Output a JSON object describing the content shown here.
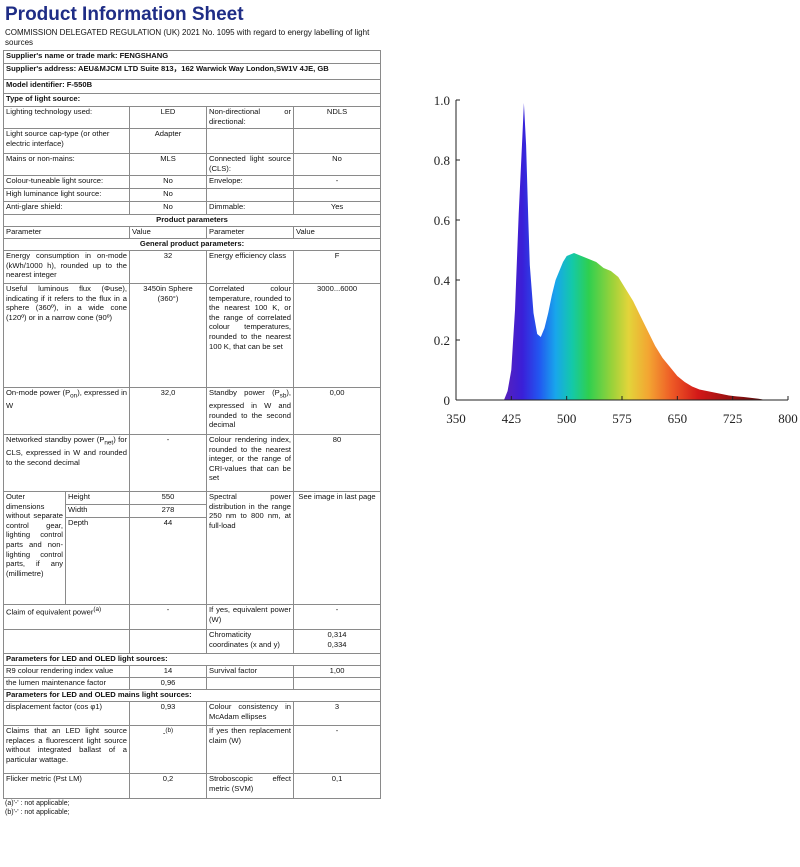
{
  "title": "Product Information Sheet",
  "regulation": "COMMISSION DELEGATED REGULATION (UK) 2021 No. 1095 with regard to energy labelling of light sources",
  "supplier_name": "Supplier's name or trade mark:  FENGSHANG",
  "supplier_address": "Supplier's address:  AEU&MJCM LTD  Suite 813，162 Warwick Way London,SW1V 4JE, GB",
  "model": "Model identifier: F-550B",
  "type_heading": "Type of light source:",
  "lighting_tech_label": "Lighting technology used:",
  "lighting_tech_value": "LED",
  "nondir_label": "Non-directional or directional:",
  "nondir_value": "NDLS",
  "cap_label": "Light source cap-type (or other electric interface)",
  "cap_value": "Adapter",
  "mains_label": "Mains or non-mains:",
  "mains_value": "MLS",
  "cls_label": "Connected light source (CLS):",
  "cls_value": "No",
  "colour_tune_label": "Colour-tuneable light source:",
  "colour_tune_value": "No",
  "envelope_label": "Envelope:",
  "envelope_value": "-",
  "high_lum_label": "High luminance light source:",
  "high_lum_value": "No",
  "antiglare_label": "Anti-glare shield:",
  "antiglare_value": "No",
  "dimmable_label": "Dimmable:",
  "dimmable_value": "Yes",
  "product_params_heading": "Product parameters",
  "col_parameter": "Parameter",
  "col_value": "Value",
  "general_params_heading": "General product parameters:",
  "energy_label": "Energy consumption in on-mode (kWh/1000 h), rounded up to the nearest integer",
  "energy_value": "32",
  "energy_class_label": "Energy efficiency class",
  "energy_class_value": "F",
  "flux_label": "Useful luminous flux (Φuse), indicating if it refers to the flux in a sphere (360º), in a wide cone (120º) or in a narrow cone (90º)",
  "flux_value": "3450in Sphere (360°)",
  "cct_label": "Correlated colour temperature, rounded to the nearest 100 K, or the range of correlated colour temperatures, rounded to the nearest 100 K, that can be set",
  "cct_value": "3000...6000",
  "onmode_label_a": "On-mode power (P",
  "onmode_sub": "on",
  "onmode_label_b": "), expressed in W",
  "onmode_value": "32,0",
  "standby_label_a": "Standby power (P",
  "standby_sub": "sb",
  "standby_label_b": "), expressed in W and rounded to the second decimal",
  "standby_value": "0,00",
  "networked_label_a": "Networked standby power (P",
  "networked_sub": "net",
  "networked_label_b": ") for CLS, expressed in W and rounded to the second decimal",
  "networked_value": "-",
  "cri_label": "Colour rendering index, rounded to the nearest integer, or the range of CRI-values that can be set",
  "cri_value": "80",
  "outer_label": "Outer dimensions without separate control gear, lighting control parts and non-lighting control parts, if any (millimetre)",
  "height_label": "Height",
  "height_value": "550",
  "width_label": "Width",
  "width_value": "278",
  "depth_label": "Depth",
  "depth_value": "44",
  "spd_label": "Spectral power distribution in the range 250 nm to 800 nm, at full-load",
  "spd_value": "See image in last page",
  "claim_label": "Claim of equivalent power",
  "claim_sup": "(a)",
  "claim_value": "-",
  "if_yes_label": "If yes, equivalent power (W)",
  "if_yes_value": "-",
  "chroma_label": "Chromaticity coordinates (x and y)",
  "chroma_x": "0,314",
  "chroma_y": "0,334",
  "led_heading": "Parameters for LED and OLED light sources:",
  "r9_label": "R9 colour rendering index value",
  "r9_value": "14",
  "survival_label": "Survival factor",
  "survival_value": "1,00",
  "lumen_maint_label": "the lumen maintenance factor",
  "lumen_maint_value": "0,96",
  "mains_heading": "Parameters for LED and OLED mains light sources:",
  "disp_label": "displacement factor (cos φ1)",
  "disp_value": "0,93",
  "consistency_label": "Colour consistency in McAdam ellipses",
  "consistency_value": "3",
  "fluor_label": "Claims that an LED light source replaces a fluorescent light source without integrated ballast of a particular wattage.",
  "fluor_value": "-",
  "fluor_sup": "(b)",
  "replacement_label": "If yes then replacement claim (W)",
  "replacement_value": "-",
  "flicker_label": "Flicker metric (Pst LM)",
  "flicker_value": "0,2",
  "svm_label": "Stroboscopic effect metric (SVM)",
  "svm_value": "0,1",
  "note_a": "(a)'-' : not applicable;",
  "note_b": "(b)'-' : not applicable;",
  "chart_data": {
    "type": "area",
    "title": "",
    "xlabel": "",
    "ylabel": "",
    "x_ticks": [
      "350",
      "425",
      "500",
      "575",
      "650",
      "725",
      "800"
    ],
    "y_ticks": [
      "0",
      "0.2",
      "0.4",
      "0.6",
      "0.8",
      "1.0"
    ],
    "xlim": [
      350,
      800
    ],
    "ylim": [
      0,
      1.0
    ],
    "x": [
      415,
      420,
      425,
      430,
      435,
      440,
      442,
      445,
      448,
      450,
      455,
      460,
      465,
      470,
      475,
      480,
      485,
      490,
      495,
      500,
      510,
      520,
      530,
      540,
      550,
      560,
      570,
      580,
      590,
      600,
      610,
      620,
      630,
      640,
      650,
      660,
      670,
      680,
      690,
      700,
      710,
      720,
      730,
      740,
      750,
      760,
      770
    ],
    "y": [
      0.0,
      0.03,
      0.1,
      0.3,
      0.62,
      0.88,
      0.99,
      0.85,
      0.6,
      0.45,
      0.29,
      0.22,
      0.21,
      0.24,
      0.29,
      0.35,
      0.4,
      0.43,
      0.46,
      0.48,
      0.49,
      0.48,
      0.47,
      0.46,
      0.44,
      0.43,
      0.41,
      0.37,
      0.33,
      0.28,
      0.23,
      0.18,
      0.14,
      0.11,
      0.08,
      0.06,
      0.045,
      0.035,
      0.03,
      0.025,
      0.02,
      0.015,
      0.012,
      0.01,
      0.007,
      0.004,
      0.0
    ],
    "grid": false
  }
}
